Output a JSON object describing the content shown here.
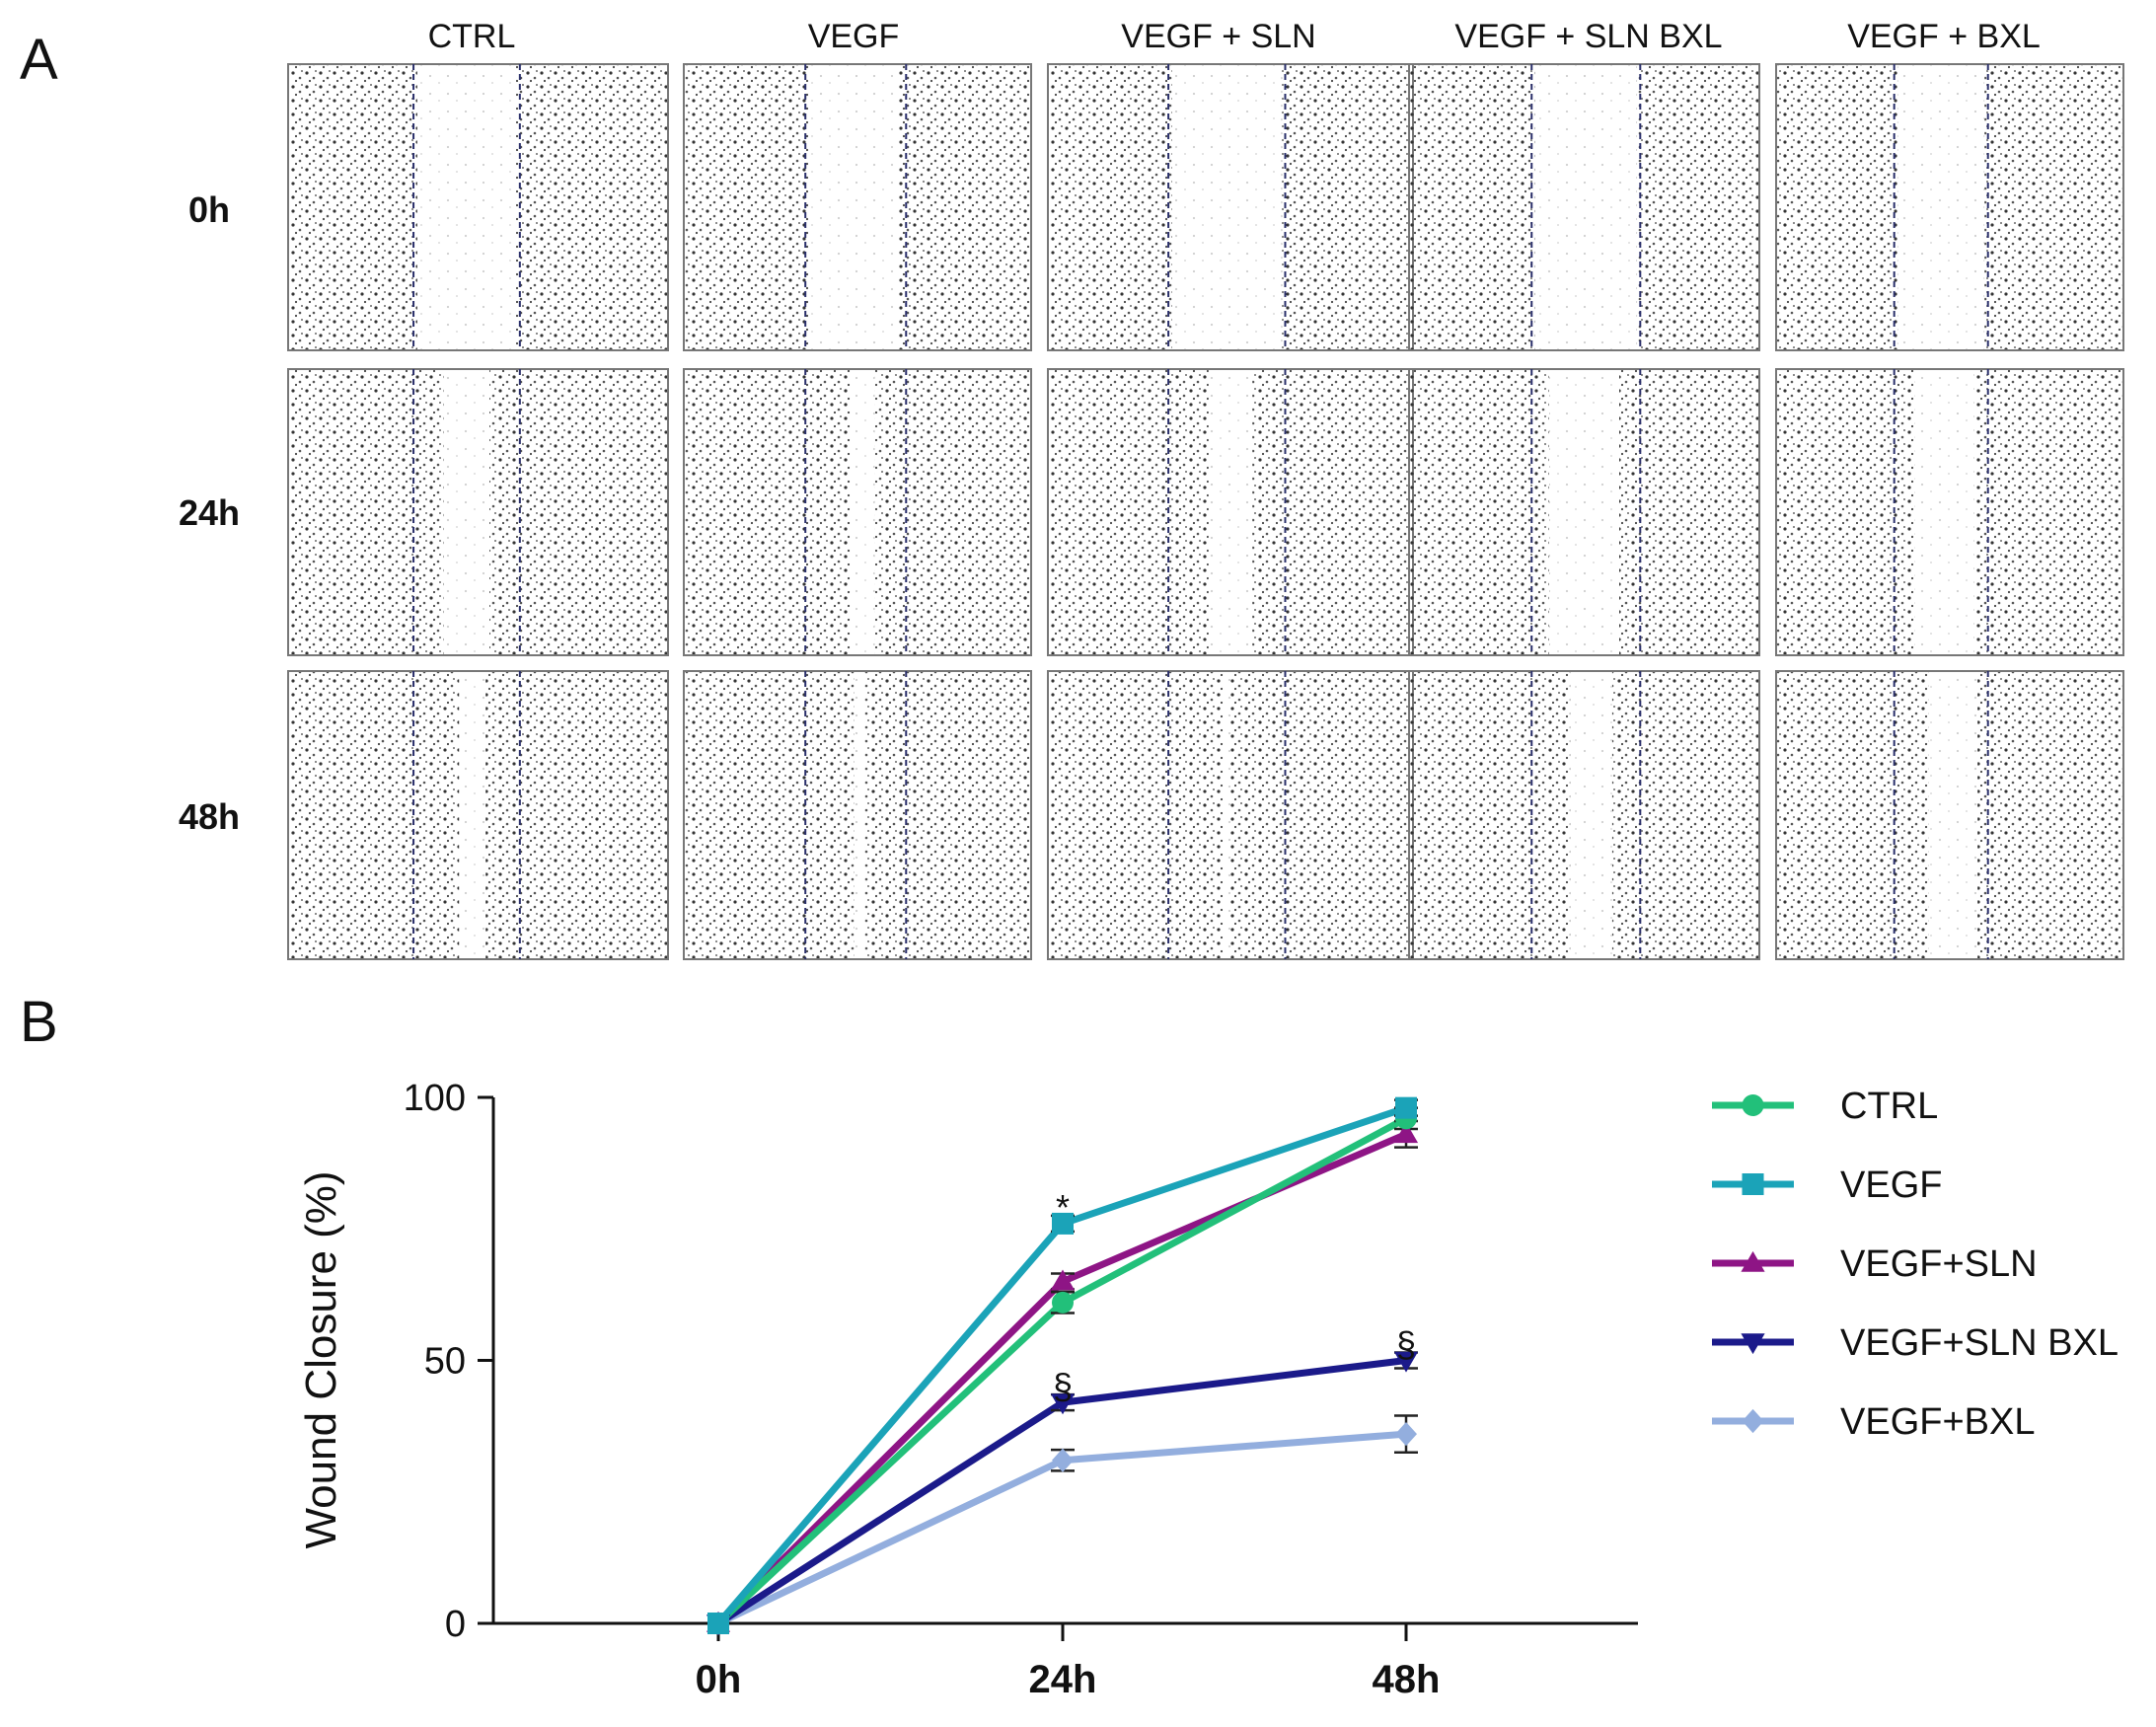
{
  "panel_a": {
    "letter": "A",
    "columns": [
      "CTRL",
      "VEGF",
      "VEGF + SLN",
      "VEGF + SLN BXL",
      "VEGF + BXL"
    ],
    "rows": [
      "0h",
      "24h",
      "48h"
    ]
  },
  "panel_b": {
    "letter": "B"
  },
  "chart_data": {
    "type": "line",
    "title": "",
    "xlabel": "",
    "ylabel": "Wound Closure (%)",
    "categories": [
      "0h",
      "24h",
      "48h"
    ],
    "ylim": [
      0,
      100
    ],
    "yticks": [
      0,
      50,
      100
    ],
    "legend_position": "right",
    "series": [
      {
        "name": "CTRL",
        "color": "#22c07a",
        "marker": "circle",
        "values": [
          0,
          61,
          96
        ],
        "errors": [
          0,
          2,
          2
        ]
      },
      {
        "name": "VEGF",
        "color": "#1ba3b8",
        "marker": "square",
        "values": [
          0,
          76,
          98
        ],
        "errors": [
          0,
          1.5,
          1.5
        ]
      },
      {
        "name": "VEGF+SLN",
        "color": "#8e1585",
        "marker": "triangle-up",
        "values": [
          0,
          65,
          93
        ],
        "errors": [
          0,
          1.5,
          2.5
        ]
      },
      {
        "name": "VEGF+SLN BXL",
        "color": "#1b1a8a",
        "marker": "triangle-down",
        "values": [
          0,
          42,
          50
        ],
        "errors": [
          0,
          1.5,
          1.5
        ]
      },
      {
        "name": "VEGF+BXL",
        "color": "#93aede",
        "marker": "diamond",
        "values": [
          0,
          31,
          36
        ],
        "errors": [
          0,
          2,
          3.5
        ]
      }
    ],
    "annotations": [
      {
        "text": "*",
        "x": "24h",
        "y": 79
      },
      {
        "text": "§",
        "x": "24h",
        "y": 45
      },
      {
        "text": "§",
        "x": "48h",
        "y": 53
      }
    ]
  }
}
